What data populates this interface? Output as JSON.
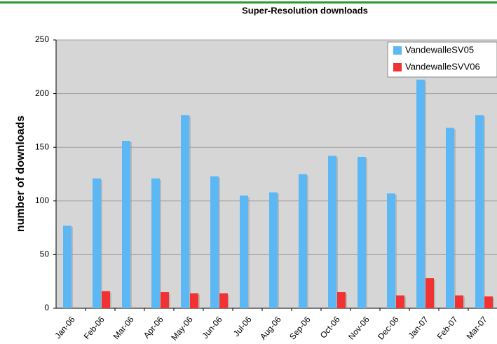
{
  "chart_data": {
    "type": "bar",
    "title": "Super-Resolution downloads",
    "ylabel": "number of downloads",
    "categories": [
      "Jan-06",
      "Feb-06",
      "Mar-06",
      "Apr-06",
      "May-06",
      "Jun-06",
      "Jul-06",
      "Aug-06",
      "Sep-06",
      "Oct-06",
      "Nov-06",
      "Dec-06",
      "Jan-07",
      "Feb-07",
      "Mar-07"
    ],
    "series": [
      {
        "name": "VandewalleSV05",
        "color": "#5bb8f5",
        "values": [
          77,
          121,
          156,
          121,
          180,
          123,
          105,
          108,
          125,
          142,
          141,
          107,
          213,
          168,
          180
        ]
      },
      {
        "name": "VandewalleSVV06",
        "color": "#f03232",
        "values": [
          null,
          16,
          null,
          15,
          14,
          14,
          null,
          null,
          null,
          15,
          null,
          12,
          28,
          12,
          11
        ]
      }
    ],
    "ylim": [
      0,
      250
    ],
    "yticks": [
      0,
      50,
      100,
      150,
      200,
      250
    ],
    "grid": true,
    "legend": "top-right"
  }
}
